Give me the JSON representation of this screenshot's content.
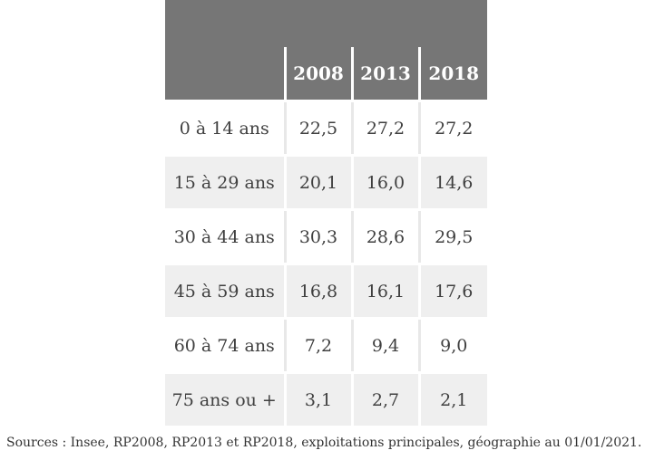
{
  "chart_data": {
    "type": "table",
    "title_small": "",
    "columns": [
      "",
      "2008",
      "2013",
      "2018"
    ],
    "rows": [
      {
        "label": "0 à 14 ans",
        "values": [
          "22,5",
          "27,2",
          "27,2"
        ]
      },
      {
        "label": "15 à 29 ans",
        "values": [
          "20,1",
          "16,0",
          "14,6"
        ]
      },
      {
        "label": "30 à 44 ans",
        "values": [
          "30,3",
          "28,6",
          "29,5"
        ]
      },
      {
        "label": "45 à 59 ans",
        "values": [
          "16,8",
          "16,1",
          "17,6"
        ]
      },
      {
        "label": "60 à 74 ans",
        "values": [
          "7,2",
          "9,4",
          "9,0"
        ]
      },
      {
        "label": "75 ans ou +",
        "values": [
          "3,1",
          "2,7",
          "2,1"
        ]
      }
    ]
  },
  "footer": {
    "source": "Sources : Insee, RP2008, RP2013 et RP2018, exploitations principales, géographie au 01/01/2021."
  },
  "colors": {
    "header_bg": "#767676",
    "row_alt_bg": "#efefef",
    "text": "#3f3f3f"
  }
}
